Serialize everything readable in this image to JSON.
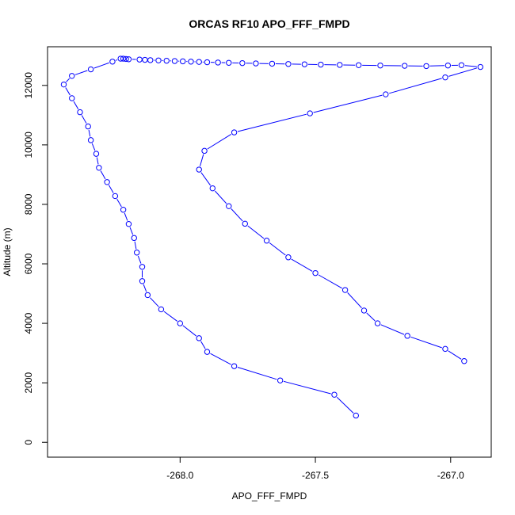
{
  "chart_data": {
    "type": "line",
    "title": "ORCAS RF10 APO_FFF_FMPD",
    "xlabel": "APO_FFF_FMPD",
    "ylabel": "Altitude (m)",
    "xlim": [
      -268.49,
      -266.85
    ],
    "ylim": [
      -500,
      13300
    ],
    "xticks": [
      -268.0,
      -267.5,
      -267.0
    ],
    "xtick_labels": [
      "-268.0",
      "-267.5",
      "-267.0"
    ],
    "yticks": [
      0,
      2000,
      4000,
      6000,
      8000,
      10000,
      12000
    ],
    "ytick_labels": [
      "0",
      "2000",
      "4000",
      "6000",
      "8000",
      "10000",
      "12000"
    ],
    "grid": false,
    "line_color": "#0000ff",
    "marker": "open-circle",
    "series": [
      {
        "points": [
          [
            -267.35,
            900
          ],
          [
            -267.43,
            1600
          ],
          [
            -267.63,
            2080
          ],
          [
            -267.8,
            2560
          ],
          [
            -267.9,
            3040
          ],
          [
            -267.93,
            3500
          ],
          [
            -268.0,
            4000
          ],
          [
            -268.07,
            4470
          ],
          [
            -268.12,
            4950
          ],
          [
            -268.14,
            5420
          ],
          [
            -268.14,
            5900
          ],
          [
            -268.16,
            6380
          ],
          [
            -268.17,
            6870
          ],
          [
            -268.19,
            7340
          ],
          [
            -268.21,
            7820
          ],
          [
            -268.24,
            8280
          ],
          [
            -268.27,
            8750
          ],
          [
            -268.3,
            9230
          ],
          [
            -268.31,
            9700
          ],
          [
            -268.33,
            10160
          ],
          [
            -268.34,
            10620
          ],
          [
            -268.37,
            11100
          ],
          [
            -268.4,
            11570
          ],
          [
            -268.43,
            12030
          ],
          [
            -268.4,
            12320
          ],
          [
            -268.33,
            12540
          ],
          [
            -268.25,
            12800
          ],
          [
            -268.22,
            12900
          ],
          [
            -268.21,
            12900
          ],
          [
            -268.2,
            12890
          ],
          [
            -268.19,
            12880
          ],
          [
            -268.15,
            12870
          ],
          [
            -268.13,
            12860
          ],
          [
            -268.11,
            12850
          ],
          [
            -268.08,
            12840
          ],
          [
            -268.05,
            12830
          ],
          [
            -268.02,
            12820
          ],
          [
            -267.99,
            12810
          ],
          [
            -267.96,
            12800
          ],
          [
            -267.93,
            12790
          ],
          [
            -267.9,
            12780
          ],
          [
            -267.86,
            12770
          ],
          [
            -267.82,
            12760
          ],
          [
            -267.77,
            12750
          ],
          [
            -267.72,
            12740
          ],
          [
            -267.66,
            12730
          ],
          [
            -267.6,
            12720
          ],
          [
            -267.54,
            12710
          ],
          [
            -267.48,
            12700
          ],
          [
            -267.41,
            12690
          ],
          [
            -267.34,
            12680
          ],
          [
            -267.26,
            12670
          ],
          [
            -267.17,
            12660
          ],
          [
            -267.09,
            12650
          ],
          [
            -267.01,
            12670
          ],
          [
            -266.96,
            12680
          ],
          [
            -266.89,
            12620
          ],
          [
            -267.02,
            12270
          ],
          [
            -267.24,
            11700
          ],
          [
            -267.52,
            11060
          ],
          [
            -267.8,
            10420
          ],
          [
            -267.91,
            9800
          ],
          [
            -267.93,
            9170
          ],
          [
            -267.88,
            8540
          ],
          [
            -267.82,
            7940
          ],
          [
            -267.76,
            7350
          ],
          [
            -267.68,
            6780
          ],
          [
            -267.6,
            6220
          ],
          [
            -267.5,
            5690
          ],
          [
            -267.39,
            5120
          ],
          [
            -267.32,
            4430
          ],
          [
            -267.27,
            4000
          ],
          [
            -267.16,
            3580
          ],
          [
            -267.02,
            3140
          ],
          [
            -266.95,
            2730
          ]
        ]
      }
    ]
  }
}
